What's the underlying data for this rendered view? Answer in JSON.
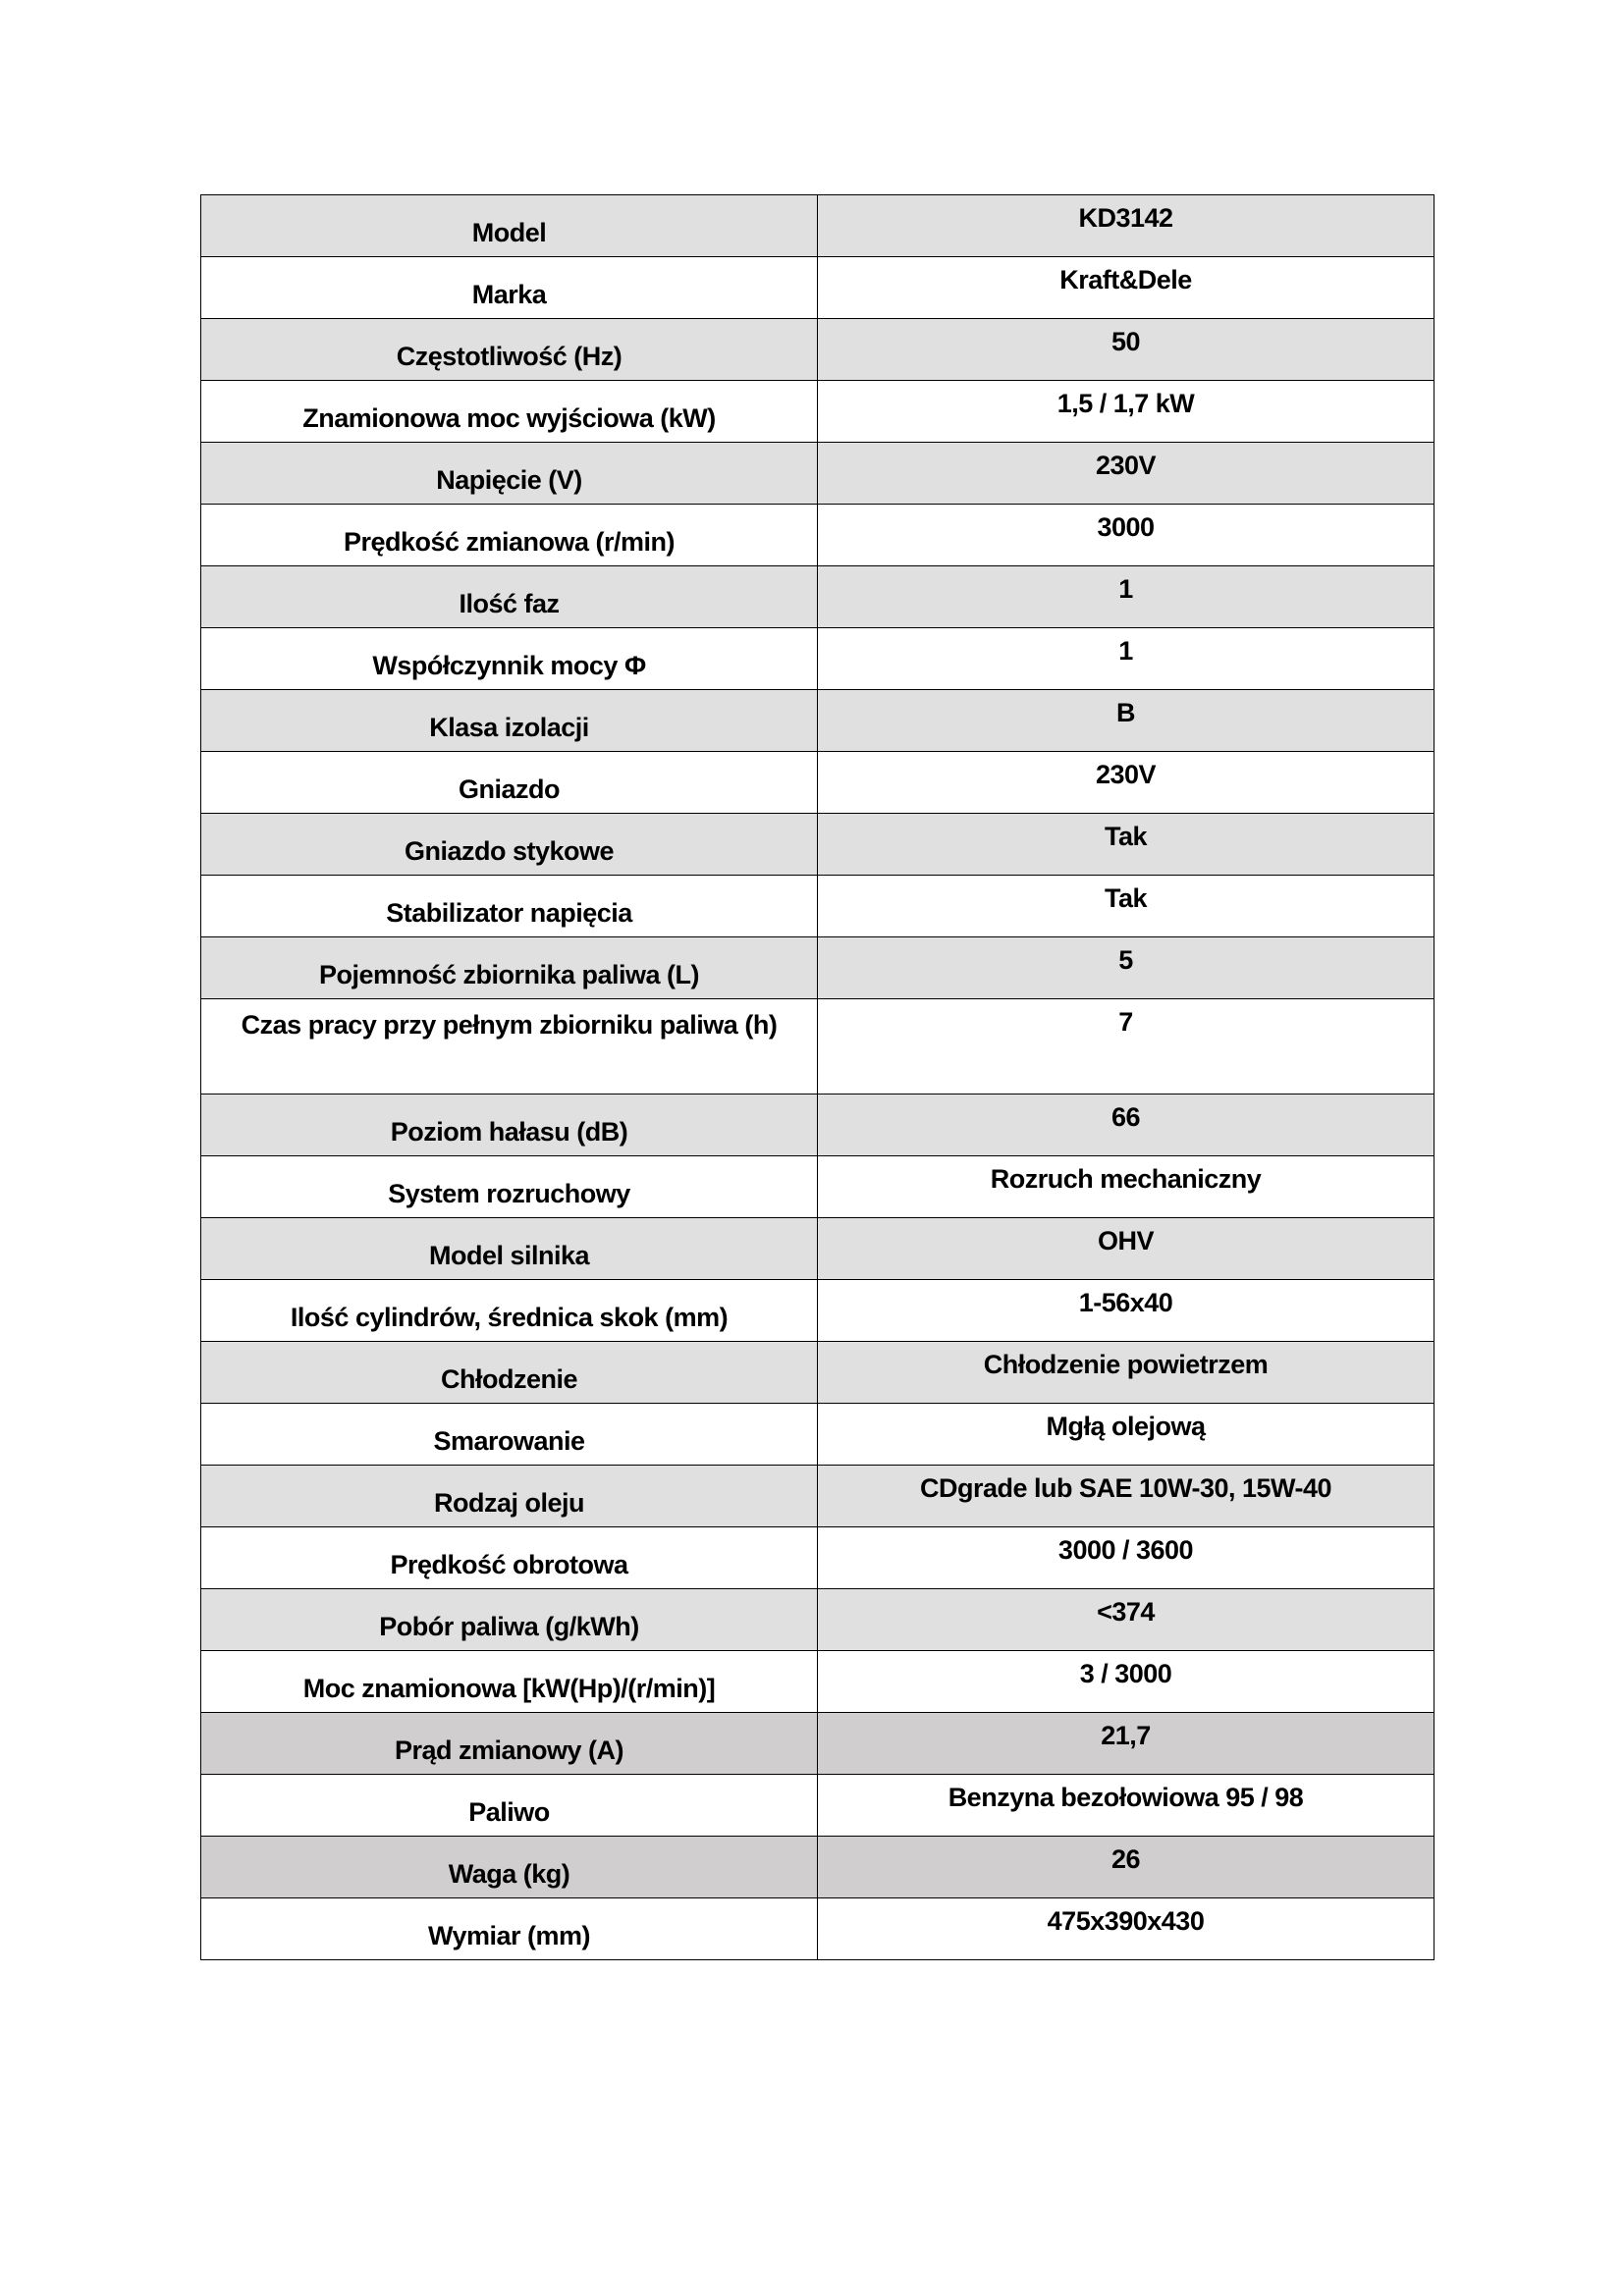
{
  "spec_table": {
    "rows": [
      {
        "label": "Model",
        "value": "KD3142"
      },
      {
        "label": "Marka",
        "value": "Kraft&Dele"
      },
      {
        "label": "Częstotliwość (Hz)",
        "value": "50"
      },
      {
        "label": "Znamionowa moc wyjściowa  (kW)",
        "value": "1,5 / 1,7 kW"
      },
      {
        "label": "Napięcie (V)",
        "value": "230V"
      },
      {
        "label": "Prędkość zmianowa (r/min)",
        "value": "3000"
      },
      {
        "label": "Ilość faz",
        "value": "1"
      },
      {
        "label": "Współczynnik mocy Φ",
        "value": "1"
      },
      {
        "label": "Klasa izolacji",
        "value": "B"
      },
      {
        "label": "Gniazdo",
        "value": "230V"
      },
      {
        "label": "Gniazdo stykowe",
        "value": "Tak"
      },
      {
        "label": "Stabilizator napięcia",
        "value": "Tak"
      },
      {
        "label": "Pojemność zbiornika paliwa (L)",
        "value": "5"
      },
      {
        "label": "Czas pracy przy pełnym zbiorniku paliwa (h)",
        "value": "7"
      },
      {
        "label": "Poziom hałasu (dB)",
        "value": "66"
      },
      {
        "label": "System rozruchowy",
        "value": "Rozruch mechaniczny"
      },
      {
        "label": "Model silnika",
        "value": "OHV"
      },
      {
        "label": "Ilość cylindrów, średnica skok (mm)",
        "value": "1-56x40"
      },
      {
        "label": "Chłodzenie",
        "value": "Chłodzenie powietrzem"
      },
      {
        "label": "Smarowanie",
        "value": "Mgłą olejową"
      },
      {
        "label": "Rodzaj oleju",
        "value": "CDgrade lub SAE 10W-30, 15W-40"
      },
      {
        "label": "Prędkość obrotowa",
        "value": "3000 / 3600"
      },
      {
        "label": "Pobór paliwa (g/kWh)",
        "value": "<374"
      },
      {
        "label": "Moc znamionowa [kW(Hp)/(r/min)]",
        "value": "3 / 3000"
      },
      {
        "label": "Prąd zmianowy (A)",
        "value": "21,7"
      },
      {
        "label": "Paliwo",
        "value": "Benzyna bezołowiowa 95 / 98"
      },
      {
        "label": "Waga (kg)",
        "value": "26"
      },
      {
        "label": "Wymiar (mm)",
        "value": "475x390x430"
      }
    ]
  },
  "colors": {
    "row_shade": "#e0e0e0",
    "row_shade_dark": "#d0cece",
    "border": "#000000"
  }
}
